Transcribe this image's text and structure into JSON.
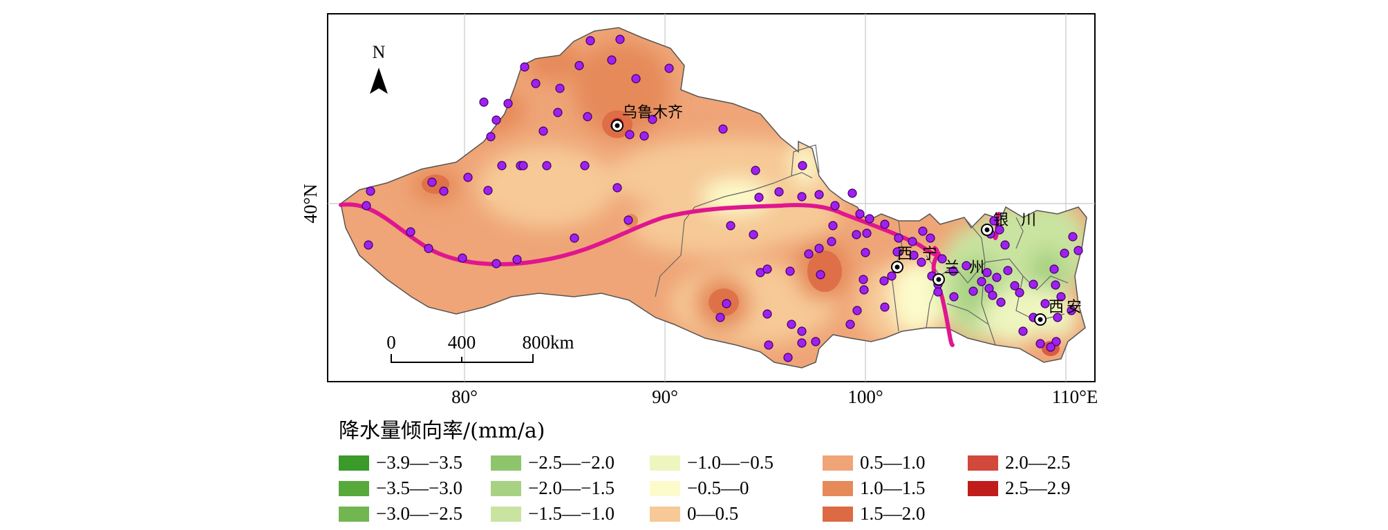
{
  "map": {
    "north_label": "N",
    "lat_label": "40°N",
    "lon_labels": [
      "80°",
      "90°",
      "100°",
      "110°E"
    ],
    "scale_labels": [
      "0",
      "400",
      "800km"
    ],
    "cities": [
      {
        "name": "乌鲁木齐",
        "lon": 87.6,
        "lat": 43.8
      },
      {
        "name": "银川",
        "lon": 106.3,
        "lat": 38.5
      },
      {
        "name": "西宁",
        "lon": 101.8,
        "lat": 36.6
      },
      {
        "name": "兰州",
        "lon": 103.8,
        "lat": 36.1
      },
      {
        "name": "西安",
        "lon": 108.9,
        "lat": 34.3
      }
    ]
  },
  "legend": {
    "title": "降水量倾向率/(mm/a)",
    "items": [
      {
        "label": "−3.9—−3.5",
        "color": "#3a9a2a"
      },
      {
        "label": "−3.5—−3.0",
        "color": "#57a93c"
      },
      {
        "label": "−3.0—−2.5",
        "color": "#72b651"
      },
      {
        "label": "−2.5—−2.0",
        "color": "#8ec46b"
      },
      {
        "label": "−2.0—−1.5",
        "color": "#a8d283"
      },
      {
        "label": "−1.5—−1.0",
        "color": "#c9e4a0"
      },
      {
        "label": "−1.0—−0.5",
        "color": "#eef5bf"
      },
      {
        "label": "−0.5—0",
        "color": "#fdfbcb"
      },
      {
        "label": "0—0.5",
        "color": "#f6c996"
      },
      {
        "label": "0.5—1.0",
        "color": "#efa577"
      },
      {
        "label": "1.0—1.5",
        "color": "#e68a5a"
      },
      {
        "label": "1.5—2.0",
        "color": "#dc6a44"
      },
      {
        "label": "2.0—2.5",
        "color": "#d2483a"
      },
      {
        "label": "2.5—2.9",
        "color": "#c01c1c"
      }
    ]
  }
}
